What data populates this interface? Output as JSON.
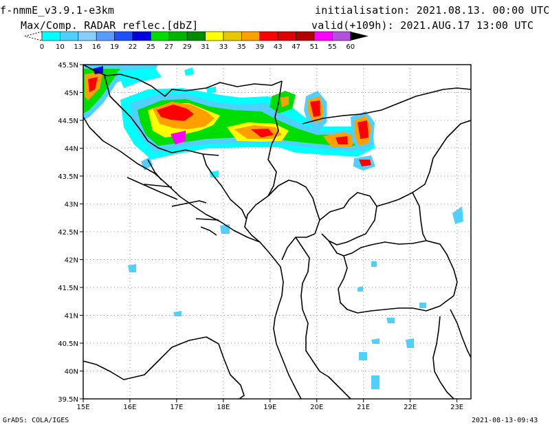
{
  "header": {
    "model": "f-nmmE_v3.9.1-e3km",
    "product": "Max/Comp. RADAR reflec.[dbZ]",
    "init": "initialisation: 2021.08.13. 00:00 UTC",
    "valid": "valid(+109h): 2021.AUG.17 13:00 UTC"
  },
  "colorbar": {
    "labels": [
      "0",
      "10",
      "13",
      "16",
      "19",
      "22",
      "25",
      "27",
      "29",
      "31",
      "33",
      "35",
      "39",
      "43",
      "47",
      "51",
      "55",
      "60"
    ],
    "colors": [
      "#00ffff",
      "#4fd0ff",
      "#87cefa",
      "#5a9bff",
      "#1e50ff",
      "#0000e0",
      "#00dd00",
      "#00b400",
      "#008c00",
      "#ffff00",
      "#e6c800",
      "#ffa000",
      "#ff0000",
      "#dc0000",
      "#b40000",
      "#ff00ff",
      "#b450dc"
    ],
    "under_color": "#ffffff",
    "over_color": "#000000"
  },
  "map": {
    "lon_labels": [
      "15E",
      "16E",
      "17E",
      "18E",
      "19E",
      "20E",
      "21E",
      "22E",
      "23E"
    ],
    "lat_labels": [
      "45.5N",
      "45N",
      "44.5N",
      "44N",
      "43.5N",
      "43N",
      "42.5N",
      "42N",
      "41.5N",
      "41N",
      "40.5N",
      "40N",
      "39.5N"
    ]
  },
  "footer": {
    "grads": "GrADS: COLA/IGES",
    "timestamp": "2021-08-13-09:43"
  }
}
